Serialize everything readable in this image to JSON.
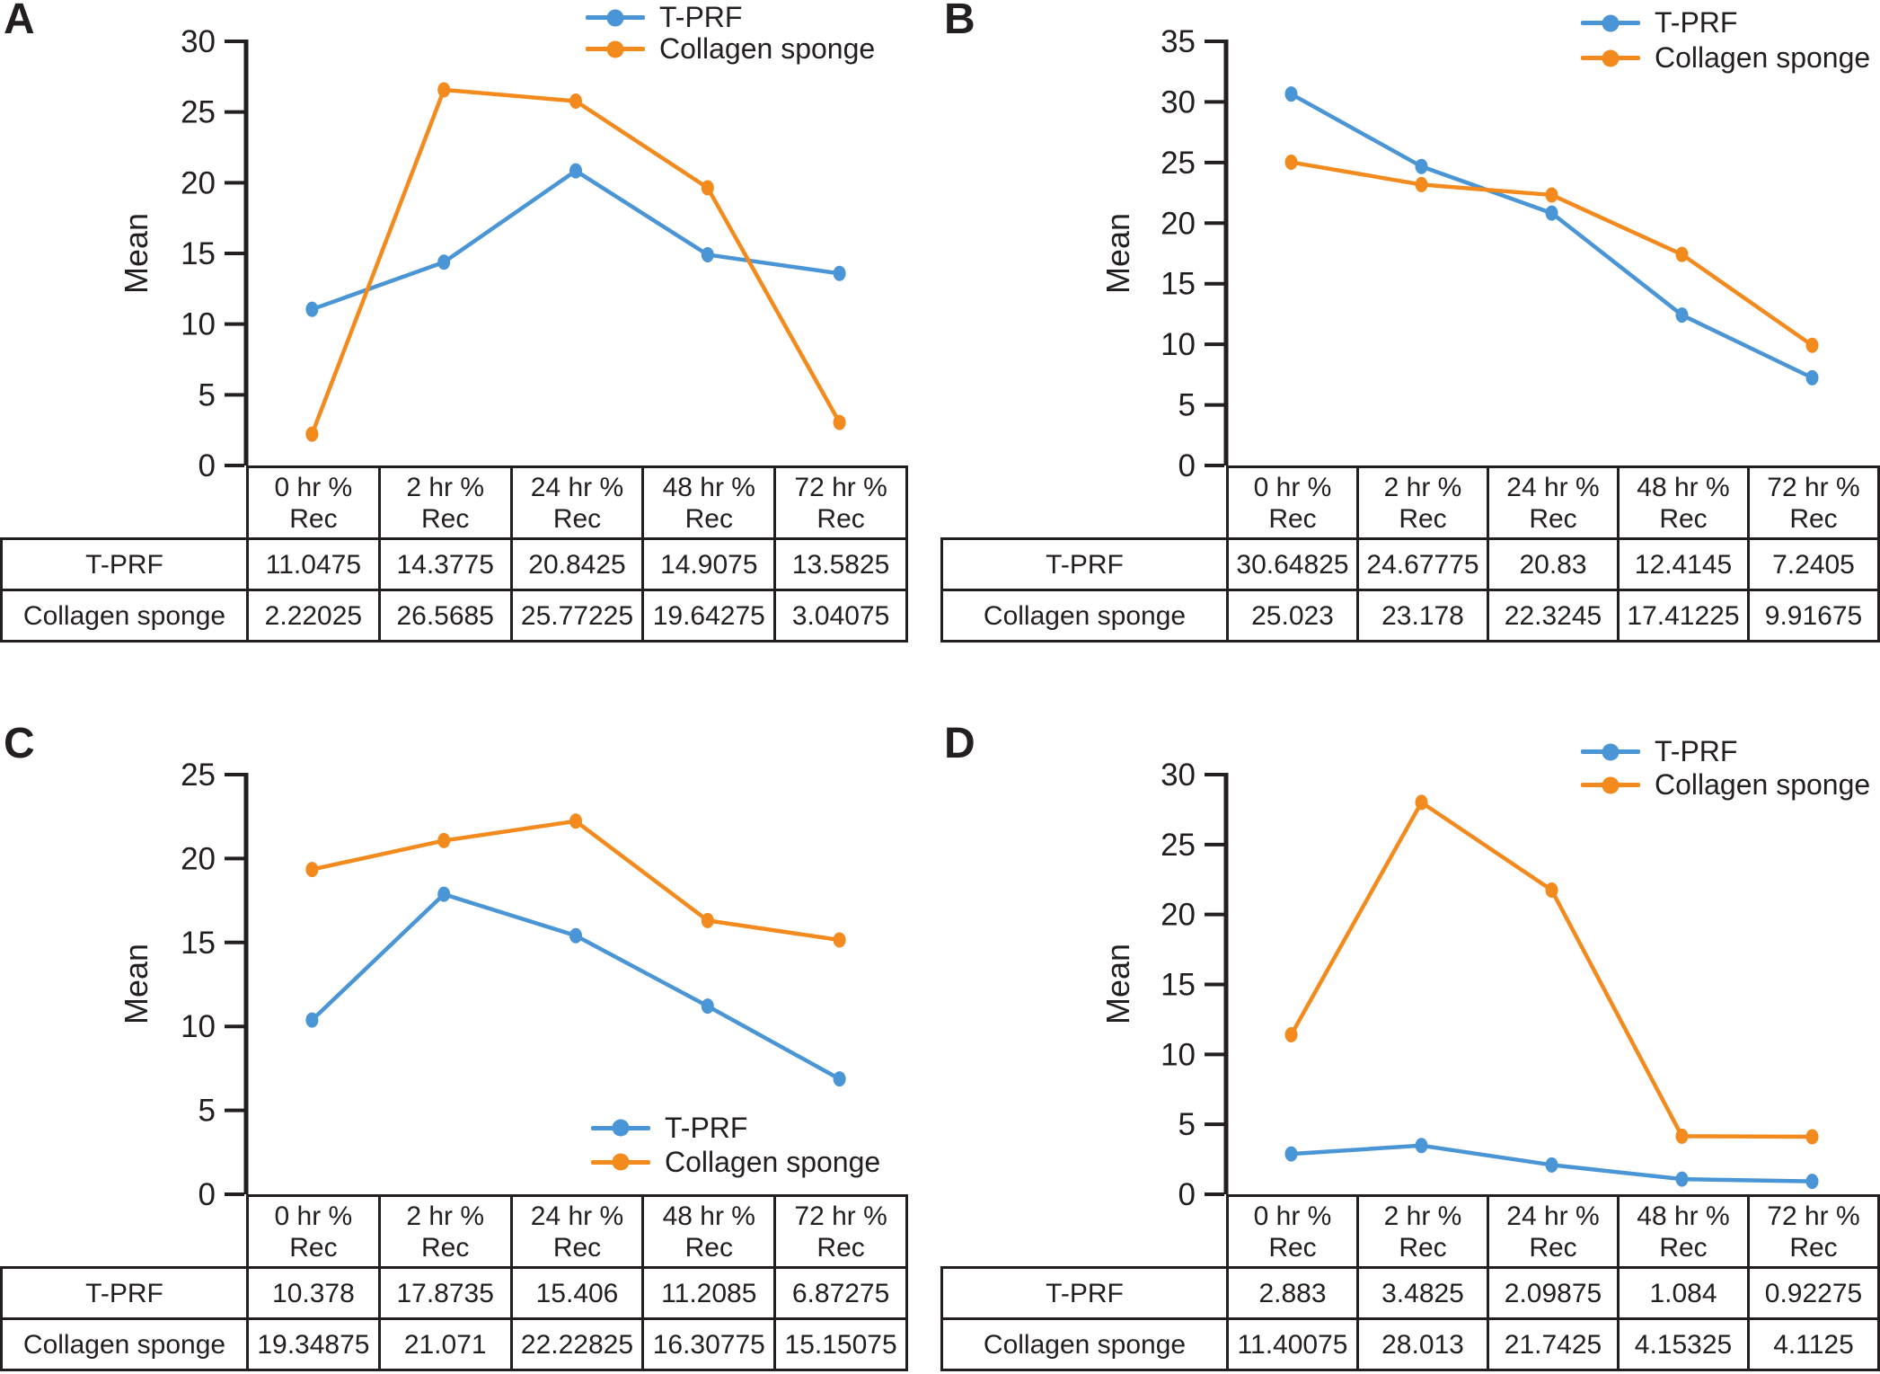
{
  "colors": {
    "tprf": "#4A95D5",
    "collagen": "#F28A1E",
    "ink": "#231F20",
    "background": "#FFFFFF"
  },
  "categories_split": [
    {
      "l1": "0 hr %",
      "l2": "Rec"
    },
    {
      "l1": "2 hr %",
      "l2": "Rec"
    },
    {
      "l1": "24 hr %",
      "l2": "Rec"
    },
    {
      "l1": "48 hr %",
      "l2": "Rec"
    },
    {
      "l1": "72 hr %",
      "l2": "Rec"
    }
  ],
  "chart_data": [
    {
      "panel_label": "A",
      "type": "line",
      "title": "",
      "ylabel": "Mean",
      "xlabel": "",
      "ylim": [
        0,
        30
      ],
      "ytick_step": 5,
      "grid": false,
      "legend_position": "top-right",
      "categories": [
        "0 hr % Rec",
        "2 hr % Rec",
        "24 hr % Rec",
        "48 hr % Rec",
        "72 hr % Rec"
      ],
      "series": [
        {
          "name": "T-PRF",
          "color": "#4A95D5",
          "values": [
            11.0475,
            14.3775,
            20.8425,
            14.9075,
            13.5825
          ]
        },
        {
          "name": "Collagen sponge",
          "color": "#F28A1E",
          "values": [
            2.22025,
            26.5685,
            25.77225,
            19.64275,
            3.04075
          ]
        }
      ]
    },
    {
      "panel_label": "B",
      "type": "line",
      "title": "",
      "ylabel": "Mean",
      "xlabel": "",
      "ylim": [
        0,
        35
      ],
      "ytick_step": 5,
      "grid": false,
      "legend_position": "top-right",
      "categories": [
        "0 hr % Rec",
        "2 hr % Rec",
        "24 hr % Rec",
        "48 hr % Rec",
        "72 hr % Rec"
      ],
      "series": [
        {
          "name": "T-PRF",
          "color": "#4A95D5",
          "values": [
            30.64825,
            24.67775,
            20.83,
            12.4145,
            7.2405
          ]
        },
        {
          "name": "Collagen sponge",
          "color": "#F28A1E",
          "values": [
            25.023,
            23.178,
            22.3245,
            17.41225,
            9.91675
          ]
        }
      ]
    },
    {
      "panel_label": "C",
      "type": "line",
      "title": "",
      "ylabel": "Mean",
      "xlabel": "",
      "ylim": [
        0,
        25
      ],
      "ytick_step": 5,
      "grid": false,
      "legend_position": "bottom-right",
      "categories": [
        "0 hr % Rec",
        "2 hr % Rec",
        "24 hr % Rec",
        "48 hr % Rec",
        "72 hr % Rec"
      ],
      "series": [
        {
          "name": "T-PRF",
          "color": "#4A95D5",
          "values": [
            10.378,
            17.8735,
            15.406,
            11.2085,
            6.87275
          ]
        },
        {
          "name": "Collagen sponge",
          "color": "#F28A1E",
          "values": [
            19.34875,
            21.071,
            22.22825,
            16.30775,
            15.15075
          ]
        }
      ]
    },
    {
      "panel_label": "D",
      "type": "line",
      "title": "",
      "ylabel": "Mean",
      "xlabel": "",
      "ylim": [
        0,
        30
      ],
      "ytick_step": 5,
      "grid": false,
      "legend_position": "top-right",
      "categories": [
        "0 hr % Rec",
        "2 hr % Rec",
        "24 hr % Rec",
        "48 hr % Rec",
        "72 hr % Rec"
      ],
      "series": [
        {
          "name": "T-PRF",
          "color": "#4A95D5",
          "values": [
            2.883,
            3.4825,
            2.09875,
            1.084,
            0.92275
          ]
        },
        {
          "name": "Collagen sponge",
          "color": "#F28A1E",
          "values": [
            11.40075,
            28.013,
            21.7425,
            4.15325,
            4.1125
          ]
        }
      ]
    }
  ]
}
